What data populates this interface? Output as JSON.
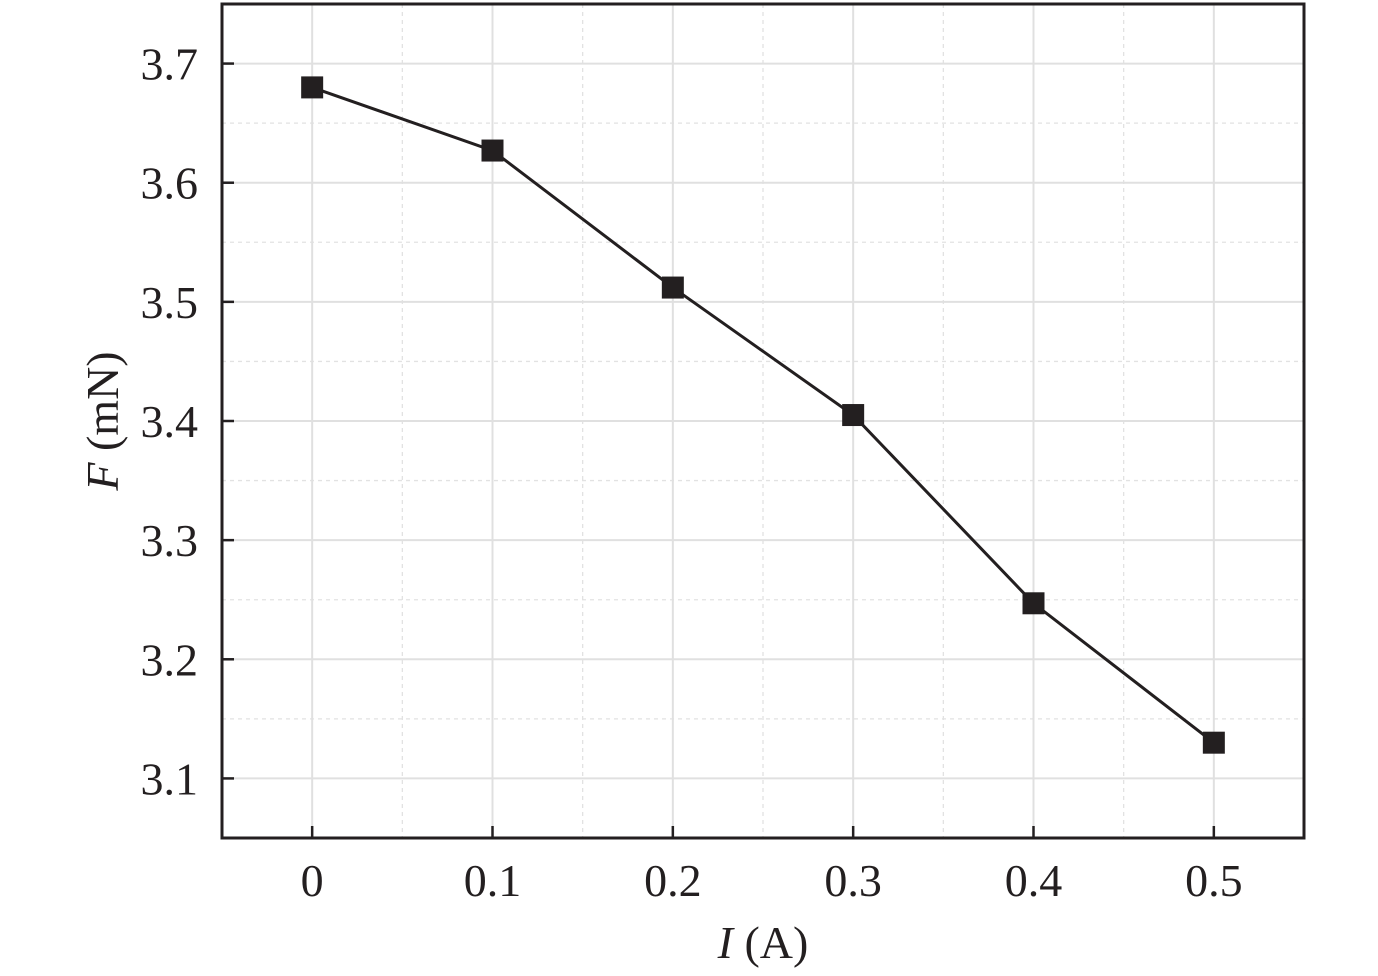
{
  "chart_data": {
    "type": "line",
    "xlabel_var": "I",
    "xlabel_unit": " (A)",
    "ylabel_var": "F",
    "ylabel_unit": " (mN)",
    "xlim": [
      -0.05,
      0.55
    ],
    "ylim": [
      3.05,
      3.75
    ],
    "x_ticks": [
      0,
      0.1,
      0.2,
      0.3,
      0.4,
      0.5
    ],
    "x_tick_labels": [
      "0",
      "0.1",
      "0.2",
      "0.3",
      "0.4",
      "0.5"
    ],
    "y_ticks": [
      3.1,
      3.2,
      3.3,
      3.4,
      3.5,
      3.6,
      3.7
    ],
    "y_tick_labels": [
      "3.1",
      "3.2",
      "3.3",
      "3.4",
      "3.5",
      "3.6",
      "3.7"
    ],
    "grid": true,
    "marker": "square",
    "line_color": "#231f20",
    "marker_color": "#231f20",
    "series": [
      {
        "x": [
          0,
          0.1,
          0.2,
          0.3,
          0.4,
          0.5
        ],
        "y": [
          3.68,
          3.627,
          3.512,
          3.405,
          3.247,
          3.13
        ]
      }
    ]
  }
}
